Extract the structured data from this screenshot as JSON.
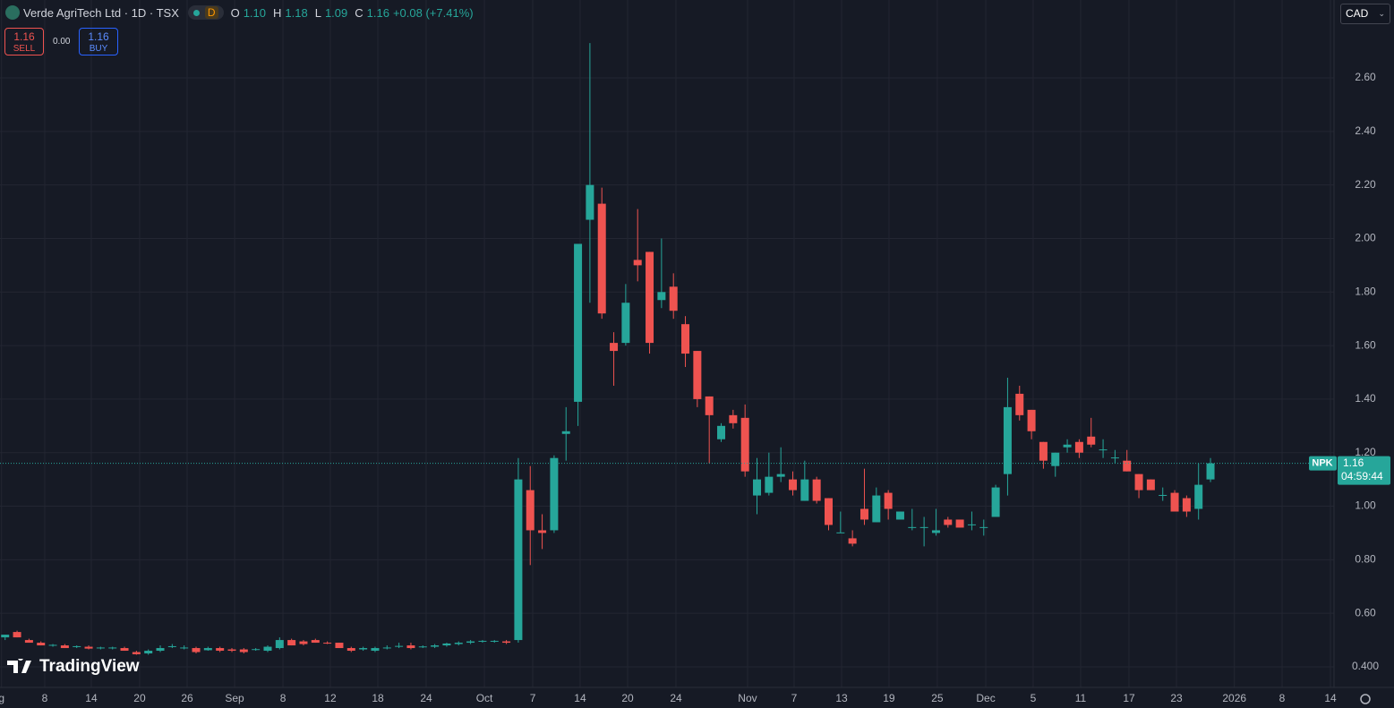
{
  "header": {
    "title": "Verde AgriTech Ltd · 1D · TSX",
    "badge": "D",
    "o_label": "O",
    "o": "1.10",
    "h_label": "H",
    "h": "1.18",
    "l_label": "L",
    "l": "1.09",
    "c_label": "C",
    "c": "1.16",
    "change": "+0.08 (+7.41%)"
  },
  "trade": {
    "sell_price": "1.16",
    "sell": "SELL",
    "spread": "0.00",
    "buy_price": "1.16",
    "buy": "BUY"
  },
  "currency": "CAD",
  "watermark": "TradingView",
  "chart_data": {
    "type": "candlestick",
    "open": [
      0.51,
      0.53,
      0.5,
      0.49,
      0.48,
      0.48,
      0.475,
      0.475,
      0.47,
      0.47,
      0.47,
      0.455,
      0.45,
      0.46,
      0.475,
      0.47,
      0.47,
      0.462,
      0.47,
      0.465,
      0.465,
      0.463,
      0.46,
      0.47,
      0.5,
      0.495,
      0.5,
      0.49,
      0.49,
      0.47,
      0.465,
      0.46,
      0.47,
      0.475,
      0.48,
      0.473,
      0.475,
      0.48,
      0.485,
      0.49,
      0.495,
      0.495,
      0.495,
      0.5,
      1.06,
      0.91,
      0.91,
      1.27,
      1.39,
      2.07,
      2.13,
      1.61,
      1.61,
      1.92,
      1.95,
      1.77,
      1.82,
      1.68,
      1.58,
      1.41,
      1.25,
      1.34,
      1.33,
      1.04,
      1.05,
      1.11,
      1.1,
      1.02,
      1.1,
      1.03,
      0.9,
      0.88,
      0.99,
      0.94,
      1.05,
      0.95,
      0.92,
      0.92,
      0.9,
      0.95,
      0.95,
      0.93,
      0.92,
      0.96,
      1.12,
      1.42,
      1.36,
      1.24,
      1.15,
      1.22,
      1.24,
      1.26,
      1.21,
      1.18,
      1.17,
      1.12,
      1.1,
      1.04,
      1.05,
      1.03,
      0.99,
      1.1
    ],
    "high": [
      0.52,
      0.535,
      0.505,
      0.495,
      0.485,
      0.485,
      0.48,
      0.48,
      0.475,
      0.475,
      0.475,
      0.46,
      0.465,
      0.48,
      0.485,
      0.48,
      0.475,
      0.475,
      0.475,
      0.47,
      0.47,
      0.47,
      0.48,
      0.51,
      0.505,
      0.5,
      0.505,
      0.495,
      0.49,
      0.475,
      0.475,
      0.475,
      0.48,
      0.49,
      0.49,
      0.48,
      0.485,
      0.49,
      0.495,
      0.5,
      0.5,
      0.5,
      0.5,
      1.18,
      1.15,
      0.97,
      1.19,
      1.37,
      1.98,
      2.73,
      2.19,
      1.65,
      1.83,
      2.11,
      1.95,
      2.0,
      1.87,
      1.71,
      1.58,
      1.41,
      1.31,
      1.36,
      1.38,
      1.18,
      1.2,
      1.22,
      1.13,
      1.17,
      1.11,
      1.03,
      0.98,
      0.91,
      1.14,
      1.07,
      1.06,
      0.98,
      0.99,
      0.96,
      0.99,
      0.96,
      0.95,
      0.98,
      0.95,
      1.08,
      1.48,
      1.45,
      1.36,
      1.24,
      1.2,
      1.25,
      1.25,
      1.33,
      1.25,
      1.21,
      1.21,
      1.12,
      1.1,
      1.07,
      1.06,
      1.04,
      1.16,
      1.18
    ],
    "low": [
      0.5,
      0.51,
      0.49,
      0.48,
      0.475,
      0.47,
      0.47,
      0.465,
      0.465,
      0.465,
      0.46,
      0.445,
      0.445,
      0.455,
      0.47,
      0.465,
      0.45,
      0.46,
      0.455,
      0.455,
      0.45,
      0.46,
      0.455,
      0.465,
      0.48,
      0.48,
      0.49,
      0.485,
      0.47,
      0.455,
      0.46,
      0.455,
      0.465,
      0.47,
      0.465,
      0.47,
      0.47,
      0.475,
      0.48,
      0.485,
      0.49,
      0.49,
      0.485,
      0.49,
      0.78,
      0.84,
      0.9,
      1.17,
      1.3,
      1.76,
      1.7,
      1.45,
      1.6,
      1.84,
      1.57,
      1.74,
      1.7,
      1.52,
      1.37,
      1.16,
      1.24,
      1.29,
      1.11,
      0.97,
      1.04,
      1.09,
      1.04,
      1.02,
      1.01,
      0.91,
      0.9,
      0.85,
      0.93,
      0.94,
      0.95,
      0.95,
      0.91,
      0.85,
      0.89,
      0.92,
      0.92,
      0.91,
      0.89,
      0.96,
      1.04,
      1.32,
      1.25,
      1.14,
      1.11,
      1.2,
      1.18,
      1.22,
      1.18,
      1.16,
      1.13,
      1.03,
      1.06,
      1.02,
      0.98,
      0.96,
      0.95,
      1.09
    ],
    "close": [
      0.52,
      0.51,
      0.49,
      0.48,
      0.482,
      0.47,
      0.477,
      0.468,
      0.472,
      0.472,
      0.46,
      0.447,
      0.46,
      0.47,
      0.477,
      0.472,
      0.455,
      0.47,
      0.46,
      0.46,
      0.455,
      0.466,
      0.475,
      0.5,
      0.48,
      0.485,
      0.49,
      0.488,
      0.47,
      0.46,
      0.47,
      0.47,
      0.472,
      0.478,
      0.47,
      0.476,
      0.48,
      0.487,
      0.49,
      0.495,
      0.497,
      0.497,
      0.49,
      1.1,
      0.91,
      0.9,
      1.18,
      1.28,
      1.98,
      2.2,
      1.72,
      1.58,
      1.76,
      1.9,
      1.61,
      1.8,
      1.73,
      1.57,
      1.4,
      1.34,
      1.3,
      1.31,
      1.13,
      1.1,
      1.11,
      1.12,
      1.06,
      1.1,
      1.02,
      0.93,
      0.902,
      0.86,
      0.95,
      1.04,
      0.99,
      0.98,
      0.922,
      0.922,
      0.91,
      0.93,
      0.92,
      0.932,
      0.922,
      1.07,
      1.37,
      1.34,
      1.28,
      1.17,
      1.2,
      1.23,
      1.2,
      1.23,
      1.212,
      1.182,
      1.13,
      1.06,
      1.06,
      1.042,
      0.98,
      0.98,
      1.08,
      1.16
    ],
    "up_color": "#26a69a",
    "down_color": "#ef5350",
    "xlim": [
      -0.43,
      111.35
    ],
    "xticks": [
      {
        "value": -0.3,
        "label": "g"
      },
      {
        "value": 3.32,
        "label": "8"
      },
      {
        "value": 7.22,
        "label": "14"
      },
      {
        "value": 11.27,
        "label": "20"
      },
      {
        "value": 15.25,
        "label": "26"
      },
      {
        "value": 19.23,
        "label": "Sep"
      },
      {
        "value": 23.28,
        "label": "8"
      },
      {
        "value": 27.25,
        "label": "12"
      },
      {
        "value": 31.23,
        "label": "18"
      },
      {
        "value": 35.28,
        "label": "24"
      },
      {
        "value": 40.16,
        "label": "Oct"
      },
      {
        "value": 44.21,
        "label": "7"
      },
      {
        "value": 48.18,
        "label": "14"
      },
      {
        "value": 52.16,
        "label": "20"
      },
      {
        "value": 56.21,
        "label": "24"
      },
      {
        "value": 62.21,
        "label": "Nov"
      },
      {
        "value": 66.11,
        "label": "7"
      },
      {
        "value": 70.09,
        "label": "13"
      },
      {
        "value": 74.06,
        "label": "19"
      },
      {
        "value": 78.11,
        "label": "25"
      },
      {
        "value": 82.17,
        "label": "Dec"
      },
      {
        "value": 86.14,
        "label": "5"
      },
      {
        "value": 90.12,
        "label": "11"
      },
      {
        "value": 94.17,
        "label": "17"
      },
      {
        "value": 98.15,
        "label": "23"
      },
      {
        "value": 103.0,
        "label": "2026"
      },
      {
        "value": 107.0,
        "label": "8"
      },
      {
        "value": 111.05,
        "label": "14"
      }
    ],
    "ylim": [
      0.323,
      2.891
    ],
    "yticks": [
      {
        "value": 0.4,
        "label": "0.400"
      },
      {
        "value": 0.6,
        "label": "0.60"
      },
      {
        "value": 0.8,
        "label": "0.80"
      },
      {
        "value": 1.0,
        "label": "1.00"
      },
      {
        "value": 1.2,
        "label": "1.20"
      },
      {
        "value": 1.4,
        "label": "1.40"
      },
      {
        "value": 1.6,
        "label": "1.60"
      },
      {
        "value": 1.8,
        "label": "1.80"
      },
      {
        "value": 2.0,
        "label": "2.00"
      },
      {
        "value": 2.2,
        "label": "2.20"
      },
      {
        "value": 2.4,
        "label": "2.40"
      },
      {
        "value": 2.6,
        "label": "2.60"
      }
    ],
    "grid": true,
    "price_tag": {
      "symbol": "NPK",
      "price": "1.16",
      "countdown": "04:59:44"
    }
  }
}
